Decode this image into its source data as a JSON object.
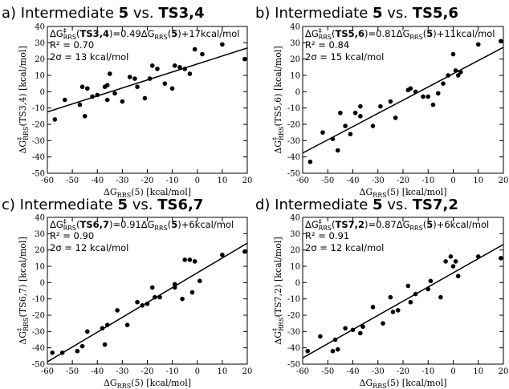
{
  "chart_data": [
    {
      "type": "scatter",
      "panel": "a",
      "title": {
        "prefix": "a) Intermediate ",
        "a": "5",
        "vs": " vs. ",
        "b": "TS3,4"
      },
      "annotation": {
        "eq_label": "TS3,4",
        "eq_coef": "0.49",
        "eq_const": "+17kcal/mol",
        "r2": "R² = 0.70",
        "sigma": "2σ = 13 kcal/mol"
      },
      "ylabel": {
        "main": "ΔG",
        "sup": "‡",
        "sub": "RRS",
        "rest": "(TS3,4) [kcal/mol]"
      },
      "xlabel": {
        "main": "ΔG",
        "sub": "RRS",
        "rest": "(5) [kcal/mol]"
      },
      "xlim": [
        -60,
        20
      ],
      "ylim": [
        -50,
        40
      ],
      "xticks": [
        -60,
        -50,
        -40,
        -30,
        -20,
        -10,
        0,
        10,
        20
      ],
      "yticks": [
        -50,
        -40,
        -30,
        -20,
        -10,
        0,
        10,
        20,
        30,
        40
      ],
      "fit": {
        "slope": 0.49,
        "intercept": 17
      },
      "points": [
        [
          -57,
          -17
        ],
        [
          -53,
          -5
        ],
        [
          -47,
          -8
        ],
        [
          -46,
          3
        ],
        [
          -45,
          -15
        ],
        [
          -44,
          2
        ],
        [
          -42,
          -3
        ],
        [
          -40,
          -2
        ],
        [
          -37,
          3
        ],
        [
          -36,
          4
        ],
        [
          -36,
          -5
        ],
        [
          -35,
          11
        ],
        [
          -33,
          -1
        ],
        [
          -30,
          -6
        ],
        [
          -27,
          9
        ],
        [
          -25,
          8
        ],
        [
          -24,
          3
        ],
        [
          -21,
          -4
        ],
        [
          -19,
          8
        ],
        [
          -18,
          16
        ],
        [
          -16,
          14
        ],
        [
          -13,
          5
        ],
        [
          -10,
          2
        ],
        [
          -9,
          16
        ],
        [
          -7,
          15
        ],
        [
          -5,
          14
        ],
        [
          -3,
          11
        ],
        [
          -1,
          26
        ],
        [
          2,
          23
        ],
        [
          10,
          29
        ],
        [
          19,
          20
        ]
      ]
    },
    {
      "type": "scatter",
      "panel": "b",
      "title": {
        "prefix": "b) Intermediate ",
        "a": "5",
        "vs": " vs. ",
        "b": "TS5,6"
      },
      "annotation": {
        "eq_label": "TS5,6",
        "eq_coef": "0.81",
        "eq_const": "+11kcal/mol",
        "r2": "R² = 0.84",
        "sigma": "2σ = 15 kcal/mol"
      },
      "ylabel": {
        "main": "ΔG",
        "sup": "‡",
        "sub": "RRS",
        "rest": "(TS5,6) [kcal/mol]"
      },
      "xlabel": {
        "main": "ΔG",
        "sub": "RRS",
        "rest": "(5) [kcal/mol]"
      },
      "xlim": [
        -60,
        20
      ],
      "ylim": [
        -50,
        40
      ],
      "xticks": [
        -60,
        -50,
        -40,
        -30,
        -20,
        -10,
        0,
        10,
        20
      ],
      "yticks": [
        -50,
        -40,
        -30,
        -20,
        -10,
        0,
        10,
        20,
        30,
        40
      ],
      "fit": {
        "slope": 0.81,
        "intercept": 11
      },
      "points": [
        [
          -57,
          -43
        ],
        [
          -52,
          -25
        ],
        [
          -48,
          -29
        ],
        [
          -46,
          -36
        ],
        [
          -45,
          -13
        ],
        [
          -43,
          -21
        ],
        [
          -41,
          -26
        ],
        [
          -39,
          -13
        ],
        [
          -37,
          -9
        ],
        [
          -37,
          -15
        ],
        [
          -32,
          -21
        ],
        [
          -29,
          -9
        ],
        [
          -25,
          -6
        ],
        [
          -23,
          -16
        ],
        [
          -18,
          1
        ],
        [
          -17,
          2
        ],
        [
          -15,
          0
        ],
        [
          -12,
          -3
        ],
        [
          -10,
          -3
        ],
        [
          -8,
          -8
        ],
        [
          -6,
          -1
        ],
        [
          -4,
          5
        ],
        [
          -2,
          10
        ],
        [
          0,
          23
        ],
        [
          1,
          13
        ],
        [
          2,
          10
        ],
        [
          3,
          12
        ],
        [
          10,
          29
        ],
        [
          19,
          31
        ]
      ]
    },
    {
      "type": "scatter",
      "panel": "c",
      "title": {
        "prefix": "c) Intermediate ",
        "a": "5",
        "vs": " vs. ",
        "b": "TS6,7"
      },
      "annotation": {
        "eq_label": "TS6,7",
        "eq_coef": "0.91",
        "eq_const": "+6kcal/mol",
        "r2": "R² = 0.90",
        "sigma": "2σ = 12 kcal/mol"
      },
      "ylabel": {
        "main": "ΔG",
        "sup": "‡",
        "sub": "RRS",
        "rest": "(TS6,7) [kcal/mol]"
      },
      "xlabel": {
        "main": "ΔG",
        "sub": "RRS",
        "rest": "(5) [kcal/mol]"
      },
      "xlim": [
        -60,
        20
      ],
      "ylim": [
        -50,
        40
      ],
      "xticks": [
        -60,
        -50,
        -40,
        -30,
        -20,
        -10,
        0,
        10,
        20
      ],
      "yticks": [
        -50,
        -40,
        -30,
        -20,
        -10,
        0,
        10,
        20,
        30,
        40
      ],
      "fit": {
        "slope": 0.91,
        "intercept": 6
      },
      "points": [
        [
          -58,
          -43
        ],
        [
          -54,
          -43
        ],
        [
          -48,
          -42
        ],
        [
          -46,
          -39
        ],
        [
          -44,
          -30
        ],
        [
          -38,
          -28
        ],
        [
          -37,
          -38
        ],
        [
          -36,
          -26
        ],
        [
          -32,
          -17
        ],
        [
          -28,
          -26
        ],
        [
          -24,
          -12
        ],
        [
          -22,
          -14
        ],
        [
          -20,
          -13
        ],
        [
          -18,
          -3
        ],
        [
          -17,
          -9
        ],
        [
          -15,
          -9
        ],
        [
          -9,
          -1
        ],
        [
          -9,
          -3
        ],
        [
          -6,
          -10
        ],
        [
          -5,
          14
        ],
        [
          -3,
          14
        ],
        [
          -2,
          -6
        ],
        [
          -1,
          13
        ],
        [
          1,
          1
        ],
        [
          10,
          17
        ],
        [
          19,
          19
        ]
      ]
    },
    {
      "type": "scatter",
      "panel": "d",
      "title": {
        "prefix": "d) Intermediate ",
        "a": "5",
        "vs": " vs. ",
        "b": "TS7,2"
      },
      "annotation": {
        "eq_label": "TS7,2",
        "eq_coef": "0.87",
        "eq_const": "+6kcal/mol",
        "r2": "R² = 0.91",
        "sigma": "2σ = 12 kcal/mol"
      },
      "ylabel": {
        "main": "ΔG",
        "sup": "‡",
        "sub": "RRS",
        "rest": "(TS7,2) [kcal/mol]"
      },
      "xlabel": {
        "main": "ΔG",
        "sub": "RRS",
        "rest": "(5) [kcal/mol]"
      },
      "xlim": [
        -60,
        20
      ],
      "ylim": [
        -50,
        40
      ],
      "xticks": [
        -60,
        -50,
        -40,
        -30,
        -20,
        -10,
        0,
        10,
        20
      ],
      "yticks": [
        -50,
        -40,
        -30,
        -20,
        -10,
        0,
        10,
        20,
        30,
        40
      ],
      "fit": {
        "slope": 0.87,
        "intercept": 6
      },
      "points": [
        [
          -58,
          -42
        ],
        [
          -53,
          -33
        ],
        [
          -48,
          -42
        ],
        [
          -47,
          -35
        ],
        [
          -46,
          -41
        ],
        [
          -43,
          -28
        ],
        [
          -40,
          -29
        ],
        [
          -37,
          -31
        ],
        [
          -36,
          -27
        ],
        [
          -32,
          -15
        ],
        [
          -28,
          -25
        ],
        [
          -25,
          -9
        ],
        [
          -24,
          -18
        ],
        [
          -22,
          -17
        ],
        [
          -18,
          -2
        ],
        [
          -17,
          -12
        ],
        [
          -15,
          -7
        ],
        [
          -10,
          -4
        ],
        [
          -9,
          1
        ],
        [
          -5,
          -9
        ],
        [
          -3,
          13
        ],
        [
          -1,
          16
        ],
        [
          0,
          10
        ],
        [
          1,
          13
        ],
        [
          2,
          4
        ],
        [
          10,
          16
        ],
        [
          19,
          15
        ]
      ]
    }
  ]
}
